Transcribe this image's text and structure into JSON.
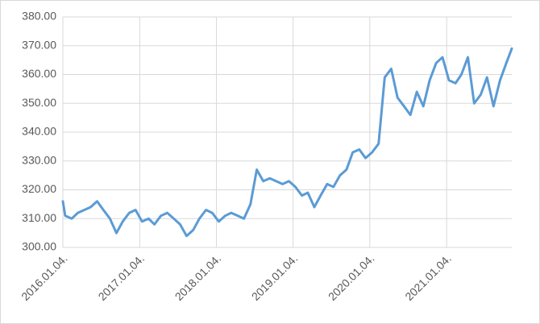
{
  "chart_data": {
    "type": "line",
    "x": [
      "2016-01-04",
      "2016-01-15",
      "2016-02-15",
      "2016-03-15",
      "2016-04-15",
      "2016-05-15",
      "2016-06-15",
      "2016-07-15",
      "2016-08-15",
      "2016-09-15",
      "2016-10-15",
      "2016-11-15",
      "2016-12-15",
      "2017-01-15",
      "2017-02-15",
      "2017-03-15",
      "2017-04-15",
      "2017-05-15",
      "2017-06-15",
      "2017-07-15",
      "2017-08-15",
      "2017-09-15",
      "2017-10-15",
      "2017-11-15",
      "2017-12-15",
      "2018-01-15",
      "2018-02-15",
      "2018-03-15",
      "2018-04-15",
      "2018-05-15",
      "2018-06-15",
      "2018-07-15",
      "2018-08-15",
      "2018-09-15",
      "2018-10-15",
      "2018-11-15",
      "2018-12-15",
      "2019-01-15",
      "2019-02-15",
      "2019-03-15",
      "2019-04-15",
      "2019-05-15",
      "2019-06-15",
      "2019-07-15",
      "2019-08-15",
      "2019-09-15",
      "2019-10-15",
      "2019-11-15",
      "2019-12-15",
      "2020-01-15",
      "2020-02-15",
      "2020-03-15",
      "2020-04-15",
      "2020-05-15",
      "2020-06-15",
      "2020-07-15",
      "2020-08-15",
      "2020-09-15",
      "2020-10-15",
      "2020-11-15",
      "2020-12-15",
      "2021-01-15",
      "2021-02-15",
      "2021-03-15",
      "2021-04-15",
      "2021-05-15",
      "2021-06-15",
      "2021-07-15",
      "2021-08-15",
      "2021-09-15",
      "2021-10-15",
      "2021-11-10"
    ],
    "series": [
      {
        "color": "#5b9bd5",
        "values": [
          316,
          311,
          310,
          312,
          313,
          314,
          316,
          313,
          310,
          305,
          309,
          312,
          313,
          309,
          310,
          308,
          311,
          312,
          310,
          308,
          304,
          306,
          310,
          313,
          312,
          309,
          311,
          312,
          311,
          310,
          315,
          327,
          323,
          324,
          323,
          322,
          323,
          321,
          318,
          319,
          314,
          318,
          322,
          321,
          325,
          327,
          333,
          334,
          331,
          333,
          336,
          359,
          362,
          352,
          349,
          346,
          354,
          349,
          358,
          364,
          366,
          358,
          357,
          360,
          366,
          350,
          353,
          359,
          349,
          358,
          364,
          369
        ]
      }
    ],
    "xlim": [
      "2016-01-04",
      "2021-11-10"
    ],
    "xticks": [
      {
        "value": "2016-01-04",
        "label": "2016.01.04."
      },
      {
        "value": "2017-01-04",
        "label": "2017.01.04."
      },
      {
        "value": "2018-01-04",
        "label": "2018.01.04."
      },
      {
        "value": "2019-01-04",
        "label": "2019.01.04."
      },
      {
        "value": "2020-01-04",
        "label": "2020.01.04."
      },
      {
        "value": "2021-01-04",
        "label": "2021.01.04."
      }
    ],
    "ylim": [
      300,
      380
    ],
    "yticks": [
      {
        "value": 300,
        "label": "300.00"
      },
      {
        "value": 310,
        "label": "310.00"
      },
      {
        "value": 320,
        "label": "320.00"
      },
      {
        "value": 330,
        "label": "330.00"
      },
      {
        "value": 340,
        "label": "340.00"
      },
      {
        "value": 350,
        "label": "350.00"
      },
      {
        "value": 360,
        "label": "360.00"
      },
      {
        "value": 370,
        "label": "370.00"
      },
      {
        "value": 380,
        "label": "380.00"
      }
    ],
    "grid": true
  }
}
